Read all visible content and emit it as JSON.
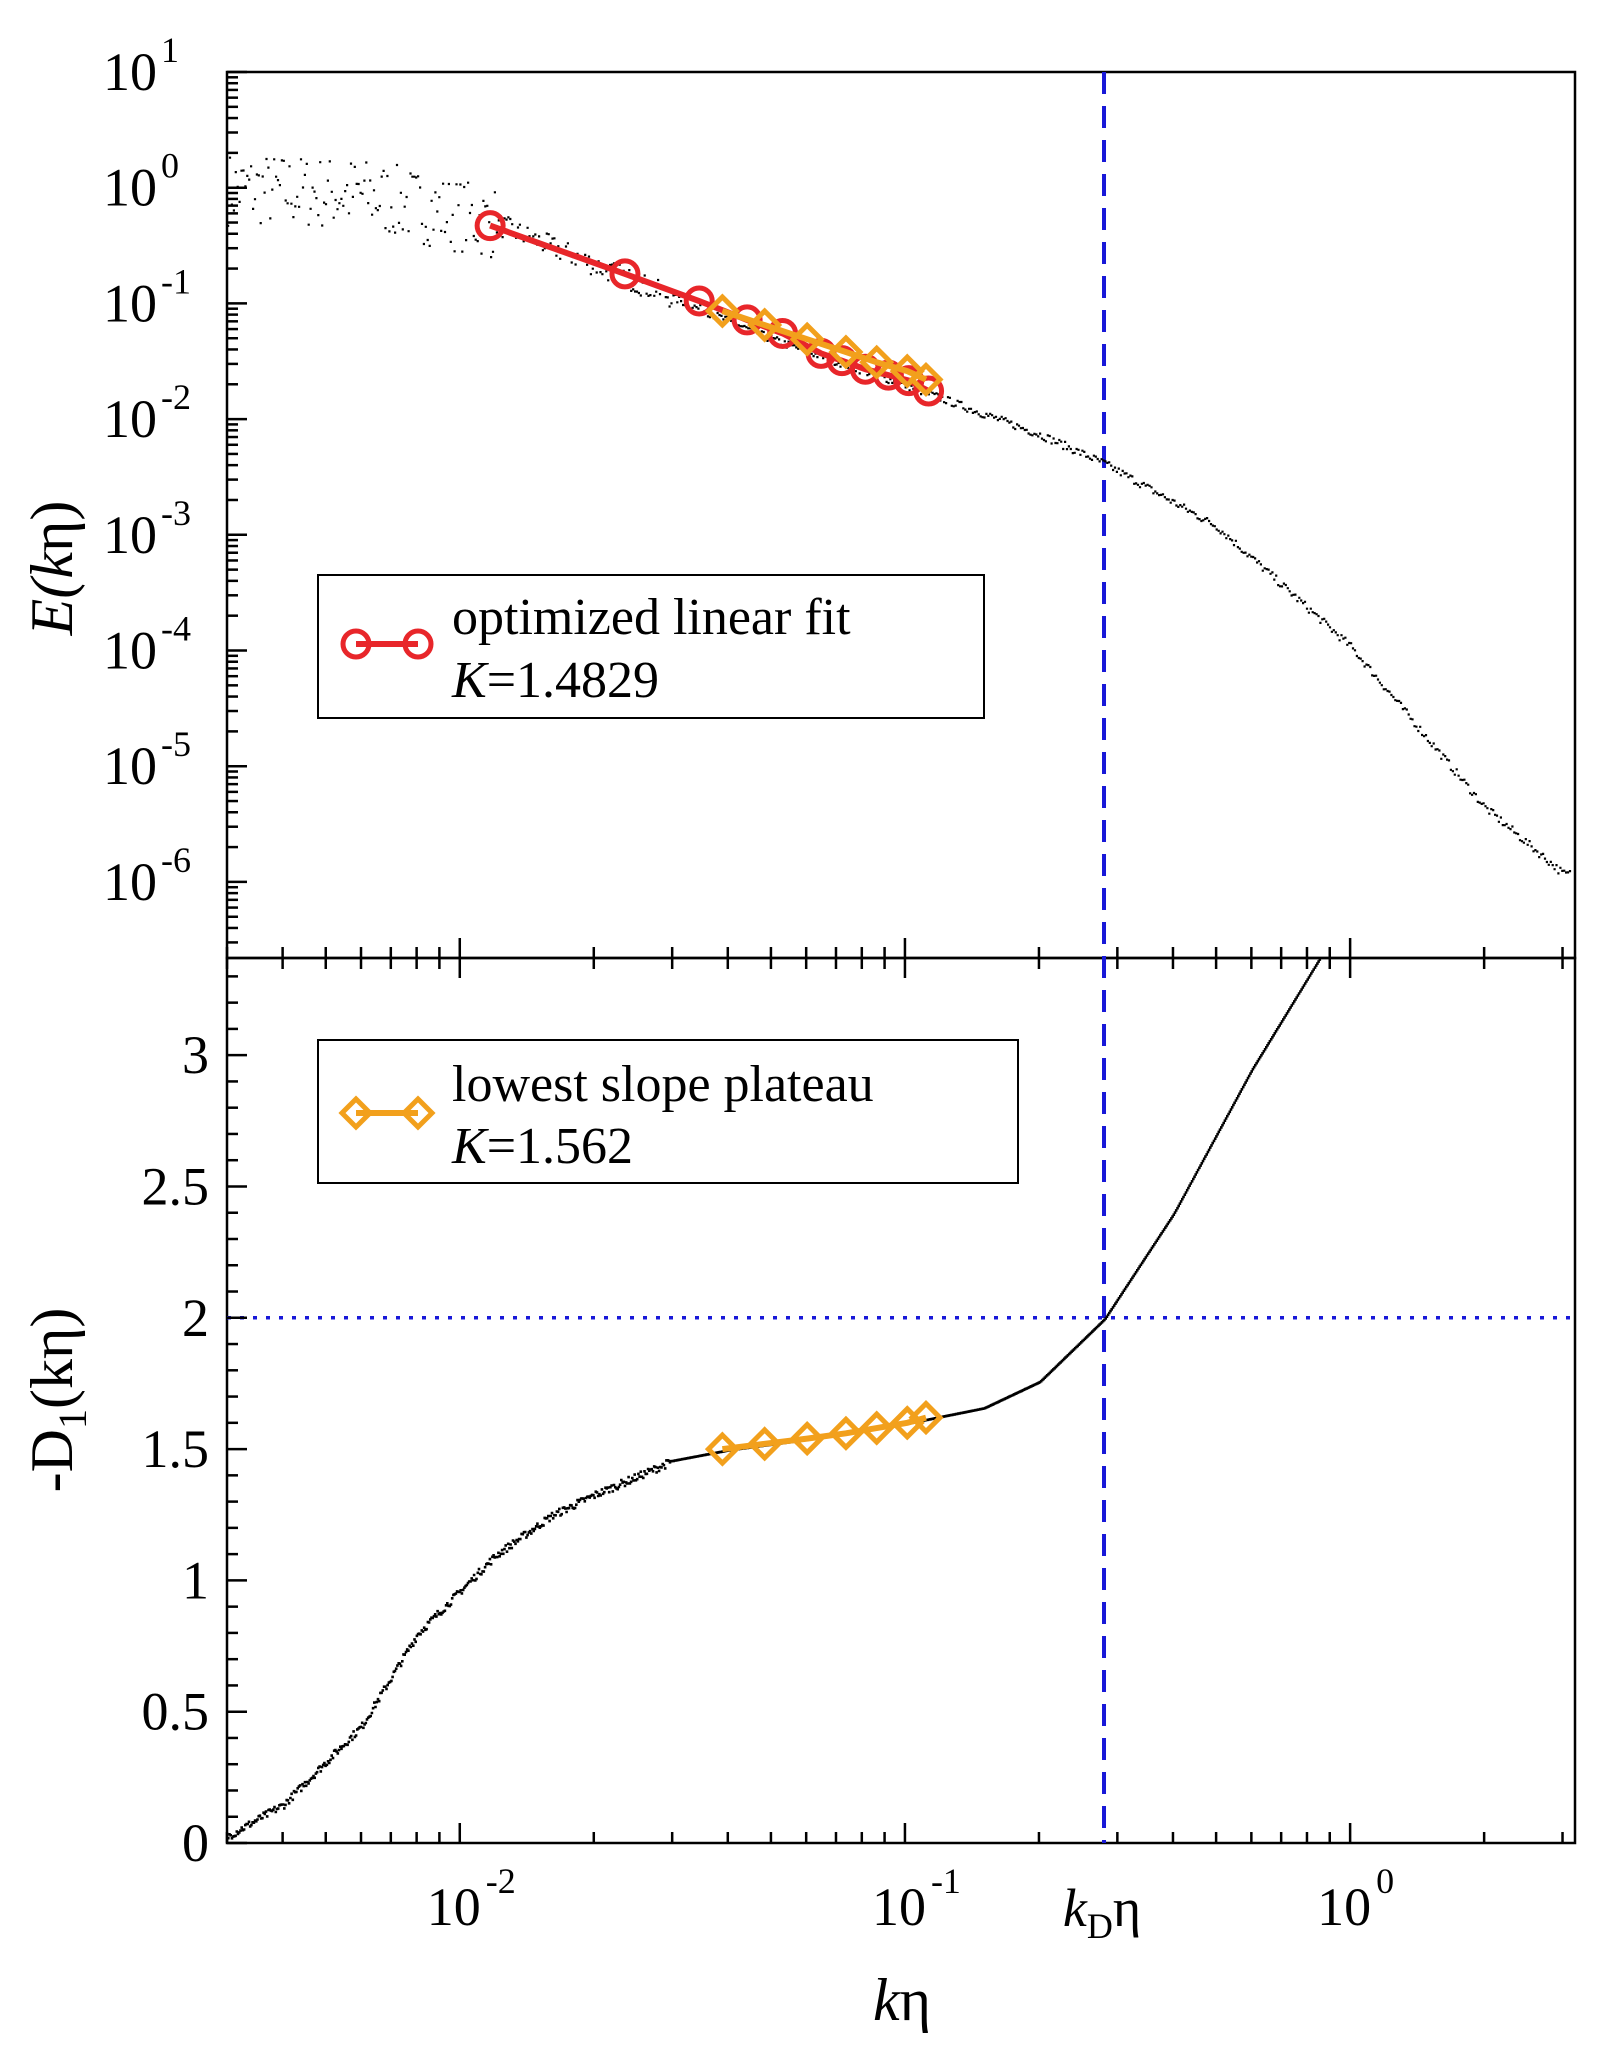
{
  "chart_data": [
    {
      "panel": "top",
      "type": "scatter",
      "xscale": "log",
      "yscale": "log",
      "xlim": [
        0.003,
        3.2
      ],
      "ylim": [
        2.2e-07,
        10
      ],
      "ylabel_parts": [
        "E(",
        "k",
        "η)"
      ],
      "yticks": [
        {
          "base": "10",
          "exp": "1",
          "value": 10
        },
        {
          "base": "10",
          "exp": "0",
          "value": 1
        },
        {
          "base": "10",
          "exp": "-1",
          "value": 0.1
        },
        {
          "base": "10",
          "exp": "-2",
          "value": 0.01
        },
        {
          "base": "10",
          "exp": "-3",
          "value": 0.001
        },
        {
          "base": "10",
          "exp": "-4",
          "value": 0.0001
        },
        {
          "base": "10",
          "exp": "-5",
          "value": 1e-05
        },
        {
          "base": "10",
          "exp": "-6",
          "value": 1e-06
        }
      ],
      "spectrum_anchors": {
        "x": [
          0.003,
          0.006,
          0.012,
          0.02,
          0.05,
          0.1,
          0.2,
          0.28,
          0.5,
          1.0,
          2.0,
          3.0
        ],
        "y": [
          1.0,
          0.9,
          0.5,
          0.22,
          0.05,
          0.02,
          0.0075,
          0.0042,
          0.0012,
          0.00011,
          4.5e-06,
          1.2e-06
        ]
      },
      "series": [
        {
          "name": "optimized linear fit",
          "marker": "circle",
          "color": "#e8262a",
          "x": [
            0.0117,
            0.0235,
            0.0345,
            0.0442,
            0.0531,
            0.0648,
            0.0722,
            0.0815,
            0.0918,
            0.102,
            0.113
          ],
          "y": [
            0.47,
            0.18,
            0.105,
            0.072,
            0.055,
            0.037,
            0.032,
            0.027,
            0.024,
            0.0215,
            0.0175
          ]
        },
        {
          "name": "lowest slope plateau",
          "marker": "diamond",
          "color": "#f2a01c",
          "x": [
            0.0389,
            0.0484,
            0.0603,
            0.0737,
            0.0864,
            0.1012,
            0.1115
          ],
          "y": [
            0.086,
            0.065,
            0.049,
            0.038,
            0.031,
            0.026,
            0.022
          ]
        }
      ],
      "legend": {
        "label": "optimized linear fit",
        "k_label": "K",
        "k_value": "=1.4829",
        "location": "middle-left"
      }
    },
    {
      "panel": "bottom",
      "type": "line",
      "xscale": "log",
      "yscale": "linear",
      "xlim": [
        0.003,
        3.2
      ],
      "ylim": [
        0,
        3.37
      ],
      "xlabel_parts": [
        "k",
        "η"
      ],
      "ylabel_parts": [
        "-D",
        "1",
        "(kη)"
      ],
      "yticks": [
        "0",
        "0.5",
        "1",
        "1.5",
        "2",
        "2.5",
        "3"
      ],
      "xticks": [
        {
          "base": "10",
          "exp": "-2",
          "value": 0.01
        },
        {
          "base": "10",
          "exp": "-1",
          "value": 0.1
        },
        {
          "base": "10",
          "exp": "0",
          "value": 1
        }
      ],
      "kd_label": {
        "k": "k",
        "sub": "D",
        "eta": "η",
        "value": 0.28
      },
      "reference_lines": {
        "vertical_x": 0.28,
        "horizontal_y": 2,
        "color": "#1818d8"
      },
      "slope_anchors": {
        "x": [
          0.003,
          0.004,
          0.006,
          0.008,
          0.012,
          0.016,
          0.02,
          0.025,
          0.03,
          0.04,
          0.06,
          0.1,
          0.15,
          0.2,
          0.28,
          0.4,
          0.6,
          0.85
        ],
        "y": [
          0.03,
          0.15,
          0.45,
          0.8,
          1.1,
          1.25,
          1.33,
          1.4,
          1.46,
          1.5,
          1.54,
          1.6,
          1.66,
          1.76,
          2.0,
          2.4,
          2.95,
          3.37
        ]
      },
      "series": [
        {
          "name": "lowest slope plateau",
          "marker": "diamond",
          "color": "#f2a01c",
          "x": [
            0.0389,
            0.0484,
            0.0603,
            0.0737,
            0.0864,
            0.1012,
            0.1115
          ],
          "y": [
            1.5,
            1.52,
            1.54,
            1.56,
            1.58,
            1.6,
            1.62
          ]
        }
      ],
      "legend": {
        "label": "lowest slope plateau",
        "k_label": "K",
        "k_value": "=1.562",
        "location": "top-left"
      }
    }
  ]
}
